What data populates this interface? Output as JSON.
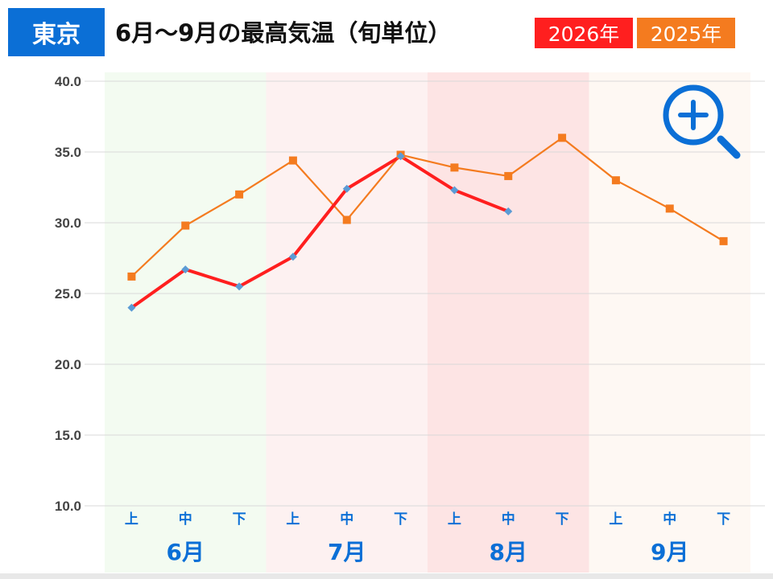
{
  "header": {
    "city": "東京",
    "title": "6月～9月の最高気温（旬単位）",
    "legend": [
      {
        "label": "2026年",
        "color": "#ff1f1f"
      },
      {
        "label": "2025年",
        "color": "#f47b1f"
      }
    ]
  },
  "zoom_icon": "zoom-in-magnifier-icon",
  "chart_data": {
    "type": "line",
    "title": "6月～9月の最高気温（旬単位）",
    "ylim": [
      10,
      40
    ],
    "yticks": [
      "10.0",
      "15.0",
      "20.0",
      "25.0",
      "30.0",
      "35.0",
      "40.0"
    ],
    "grid": true,
    "legend_position": "top-right",
    "categories": [
      "上",
      "中",
      "下",
      "上",
      "中",
      "下",
      "上",
      "中",
      "下",
      "上",
      "中",
      "下"
    ],
    "months": [
      {
        "label": "6月",
        "color": "#f3fbf1"
      },
      {
        "label": "7月",
        "color": "#fdf1f1"
      },
      {
        "label": "8月",
        "color": "#fde4e4"
      },
      {
        "label": "9月",
        "color": "#fef8f3"
      }
    ],
    "series": [
      {
        "name": "2026年",
        "color": "#ff1f1f",
        "marker_color": "#5b9bd5",
        "marker": "diamond",
        "values": [
          24.0,
          26.7,
          25.5,
          27.6,
          32.4,
          34.7,
          32.3,
          30.8,
          null,
          null,
          null,
          null
        ]
      },
      {
        "name": "2025年",
        "color": "#f47b1f",
        "marker_color": "#f47b1f",
        "marker": "square",
        "values": [
          26.2,
          29.8,
          32.0,
          34.4,
          30.2,
          34.8,
          33.9,
          33.3,
          36.0,
          33.0,
          31.0,
          28.7
        ]
      }
    ]
  }
}
